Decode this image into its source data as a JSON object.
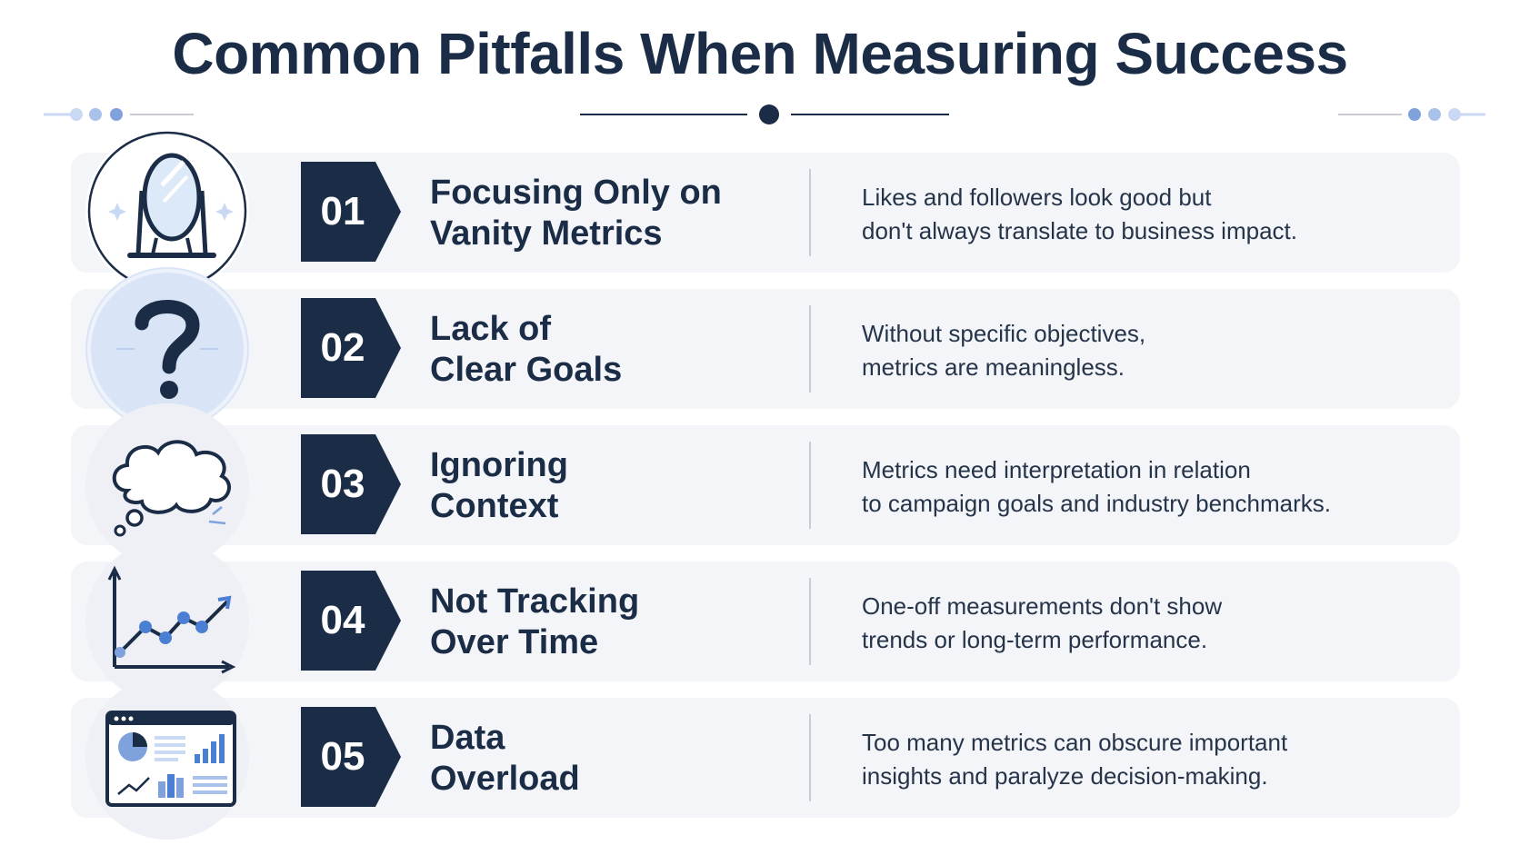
{
  "title": "Common Pitfalls When Measuring Success",
  "colors": {
    "navy": "#1b2c47",
    "accent_blue": "#4a7fd4",
    "light_blue": "#c9d9f3",
    "row_bg": "#f4f5f8"
  },
  "pitfalls": [
    {
      "number": "01",
      "icon": "mirror-icon",
      "heading_lines": [
        "Focusing Only on",
        "Vanity Metrics"
      ],
      "description_lines": [
        "Likes and followers look good but",
        "don't always translate to business impact."
      ]
    },
    {
      "number": "02",
      "icon": "question-mark-icon",
      "heading_lines": [
        "Lack of",
        "Clear Goals"
      ],
      "description_lines": [
        "Without specific objectives,",
        "metrics are meaningless."
      ]
    },
    {
      "number": "03",
      "icon": "thought-cloud-icon",
      "heading_lines": [
        "Ignoring",
        "Context"
      ],
      "description_lines": [
        "Metrics need interpretation in relation",
        "to campaign goals and industry benchmarks."
      ]
    },
    {
      "number": "04",
      "icon": "trend-chart-icon",
      "heading_lines": [
        "Not Tracking",
        "Over Time"
      ],
      "description_lines": [
        "One-off measurements don't show",
        "trends or long-term performance."
      ]
    },
    {
      "number": "05",
      "icon": "dashboard-icon",
      "heading_lines": [
        "Data",
        "Overload"
      ],
      "description_lines": [
        "Too many metrics can obscure important",
        "insights and paralyze decision-making."
      ]
    }
  ]
}
